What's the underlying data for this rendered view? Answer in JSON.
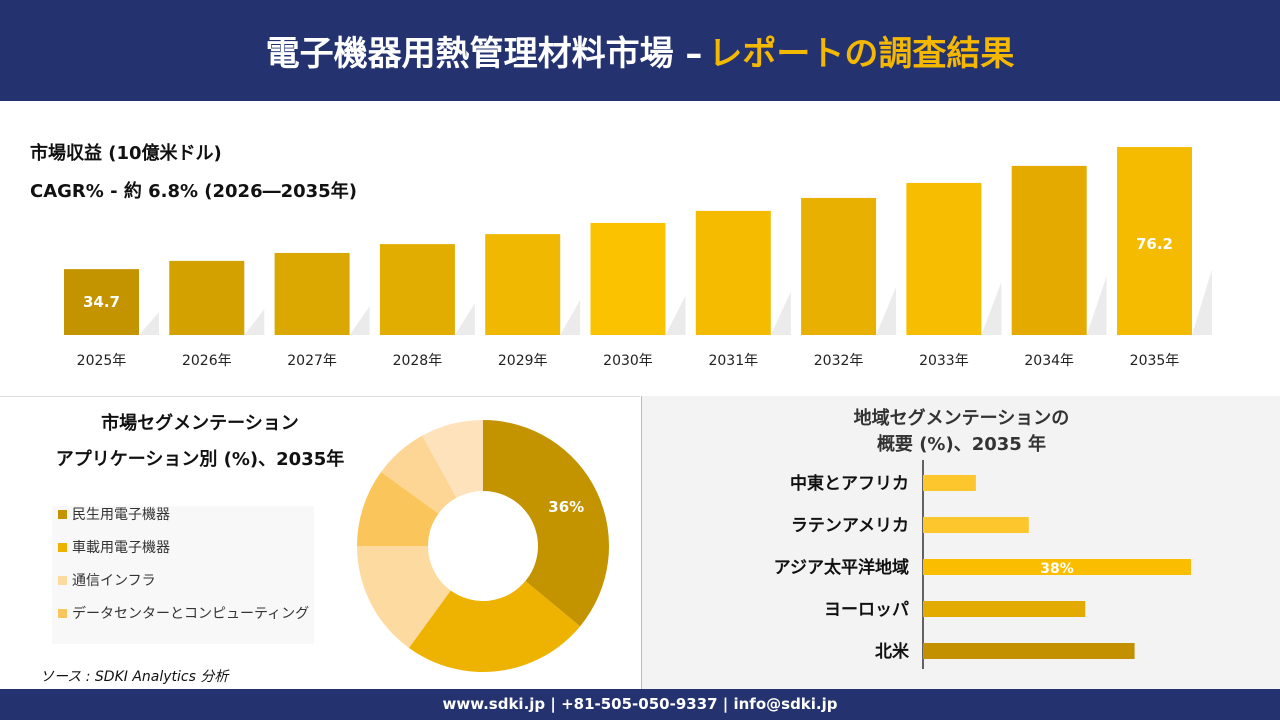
{
  "header": {
    "title_main": "電子機器用熱管理材料市場 –",
    "title_accent": "レポートの調査結果"
  },
  "revenue": {
    "label": "市場収益 (10億米ドル)",
    "cagr": "CAGR% - 約 6.8% (2026―2035年)"
  },
  "chart_data": [
    {
      "type": "bar",
      "categories": [
        "2025年",
        "2026年",
        "2027年",
        "2028年",
        "2029年",
        "2030年",
        "2031年",
        "2032年",
        "2033年",
        "2034年",
        "2035年"
      ],
      "values": [
        34.7,
        37.5,
        40.2,
        43.2,
        46.6,
        50.4,
        54.5,
        58.9,
        64.0,
        69.8,
        76.2
      ],
      "data_labels": {
        "0": "34.7",
        "10": "76.2"
      },
      "colors": [
        "#c49300",
        "#d4a200",
        "#daa800",
        "#e0ad00",
        "#f0b800",
        "#fbc200",
        "#f5bb00",
        "#e8b000",
        "#f7bd00",
        "#e5aa00",
        "#f5bb00"
      ],
      "grid": false
    },
    {
      "type": "pie",
      "title": "市場セグメンテーション",
      "subtitle": "アプリケーション別 (%)、2035年",
      "legend": [
        "民生用電子機器",
        "車載用電子機器",
        "通信インフラ",
        "データセンターとコンピューティング"
      ],
      "legend_colors": [
        "#c49300",
        "#eeb200",
        "#fddba0",
        "#fac55a"
      ],
      "values": [
        36,
        24,
        15,
        10,
        7,
        8
      ],
      "colors": [
        "#c49300",
        "#eeb200",
        "#fddba0",
        "#fac55a",
        "#fdd594",
        "#fde2bb"
      ],
      "data_labels": {
        "0": "36%"
      },
      "hole": true
    },
    {
      "type": "bar",
      "orientation": "horizontal",
      "title": "地域セグメンテーションの",
      "subtitle": "概要 (%)、2035 年",
      "categories": [
        "中東とアフリカ",
        "ラテンアメリカ",
        "アジア太平洋地域",
        "ヨーロッパ",
        "北米"
      ],
      "values": [
        7.5,
        15,
        38,
        23,
        30
      ],
      "colors": [
        "#fcc62c",
        "#fcc62c",
        "#fbbd00",
        "#e3aa00",
        "#c29000"
      ],
      "data_labels": {
        "2": "38%"
      }
    }
  ],
  "source": "ソース : SDKI Analytics 分析",
  "footer": "www.sdki.jp | +81-505-050-9337 | info@sdki.jp"
}
